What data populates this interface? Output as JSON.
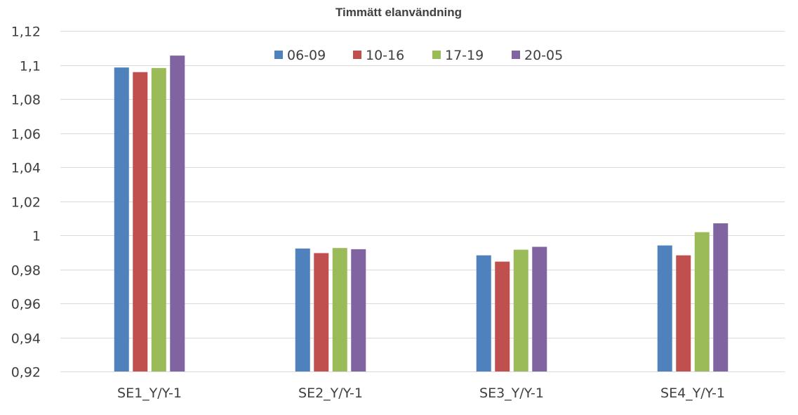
{
  "chart_data": {
    "type": "bar",
    "title": "Timmätt elanvändning",
    "xlabel": "",
    "ylabel": "",
    "categories": [
      "SE1_Y/Y-1",
      "SE2_Y/Y-1",
      "SE3_Y/Y-1",
      "SE4_Y/Y-1"
    ],
    "series": [
      {
        "name": "06-09",
        "color": "#4f81bd",
        "values": [
          1.0985,
          0.9922,
          0.9882,
          0.994
        ]
      },
      {
        "name": "10-16",
        "color": "#c0504d",
        "values": [
          1.0958,
          0.9895,
          0.9845,
          0.9882
        ]
      },
      {
        "name": "17-19",
        "color": "#9bbb59",
        "values": [
          1.0982,
          0.9925,
          0.9915,
          1.0018
        ]
      },
      {
        "name": "20-05",
        "color": "#8064a2",
        "values": [
          1.1055,
          0.9918,
          0.9932,
          1.007
        ]
      }
    ],
    "ylim": [
      0.92,
      1.12
    ],
    "yticks": [
      0.92,
      0.94,
      0.96,
      0.98,
      1,
      1.02,
      1.04,
      1.06,
      1.08,
      1.1,
      1.12
    ],
    "ytick_labels": [
      "0,92",
      "0,94",
      "0,96",
      "0,98",
      "1",
      "1,02",
      "1,04",
      "1,06",
      "1,08",
      "1,1",
      "1,12"
    ],
    "grid": true,
    "legend_position": "top-center"
  }
}
